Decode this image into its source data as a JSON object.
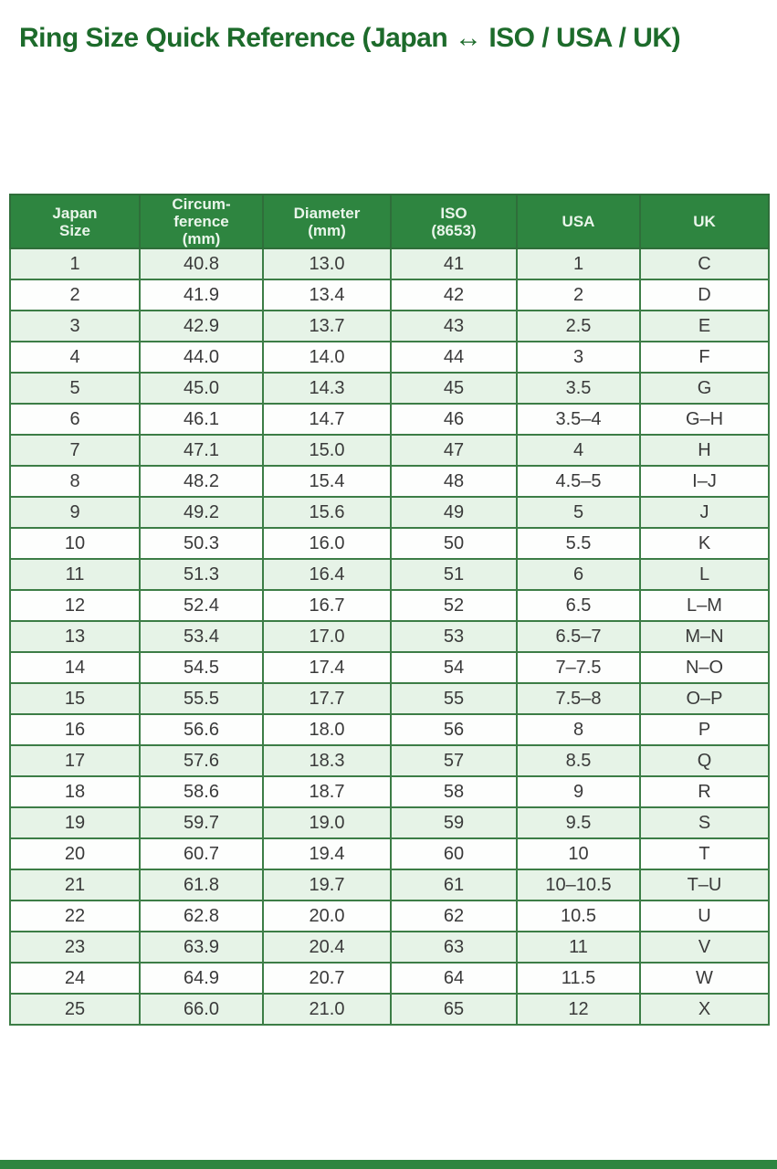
{
  "page": {
    "title": "Ring Size Quick Reference (Japan ↔ ISO / USA / UK)"
  },
  "colors": {
    "title_green": "#1d6b2b",
    "header_bg": "#2e8540",
    "header_text": "#e9f5ea",
    "row_stripe_green": "#e6f3e7",
    "row_stripe_white": "#fdfefd",
    "border_green": "#3c7d46",
    "cell_text": "#3a3a3a",
    "footer_bar": "#2e8540"
  },
  "table": {
    "headers": [
      "Japan\nSize",
      "Circum-\nference\n(mm)",
      "Diameter\n(mm)",
      "ISO\n(8653)",
      "USA",
      "UK"
    ]
  },
  "chart_data": {
    "type": "table",
    "title": "Ring Size Quick Reference (Japan ↔ ISO / USA / UK)",
    "columns": [
      "Japan Size",
      "Circumference (mm)",
      "Diameter (mm)",
      "ISO (8653)",
      "USA",
      "UK"
    ],
    "rows": [
      [
        "1",
        "40.8",
        "13.0",
        "41",
        "1",
        "C"
      ],
      [
        "2",
        "41.9",
        "13.4",
        "42",
        "2",
        "D"
      ],
      [
        "3",
        "42.9",
        "13.7",
        "43",
        "2.5",
        "E"
      ],
      [
        "4",
        "44.0",
        "14.0",
        "44",
        "3",
        "F"
      ],
      [
        "5",
        "45.0",
        "14.3",
        "45",
        "3.5",
        "G"
      ],
      [
        "6",
        "46.1",
        "14.7",
        "46",
        "3.5–4",
        "G–H"
      ],
      [
        "7",
        "47.1",
        "15.0",
        "47",
        "4",
        "H"
      ],
      [
        "8",
        "48.2",
        "15.4",
        "48",
        "4.5–5",
        "I–J"
      ],
      [
        "9",
        "49.2",
        "15.6",
        "49",
        "5",
        "J"
      ],
      [
        "10",
        "50.3",
        "16.0",
        "50",
        "5.5",
        "K"
      ],
      [
        "11",
        "51.3",
        "16.4",
        "51",
        "6",
        "L"
      ],
      [
        "12",
        "52.4",
        "16.7",
        "52",
        "6.5",
        "L–M"
      ],
      [
        "13",
        "53.4",
        "17.0",
        "53",
        "6.5–7",
        "M–N"
      ],
      [
        "14",
        "54.5",
        "17.4",
        "54",
        "7–7.5",
        "N–O"
      ],
      [
        "15",
        "55.5",
        "17.7",
        "55",
        "7.5–8",
        "O–P"
      ],
      [
        "16",
        "56.6",
        "18.0",
        "56",
        "8",
        "P"
      ],
      [
        "17",
        "57.6",
        "18.3",
        "57",
        "8.5",
        "Q"
      ],
      [
        "18",
        "58.6",
        "18.7",
        "58",
        "9",
        "R"
      ],
      [
        "19",
        "59.7",
        "19.0",
        "59",
        "9.5",
        "S"
      ],
      [
        "20",
        "60.7",
        "19.4",
        "60",
        "10",
        "T"
      ],
      [
        "21",
        "61.8",
        "19.7",
        "61",
        "10–10.5",
        "T–U"
      ],
      [
        "22",
        "62.8",
        "20.0",
        "62",
        "10.5",
        "U"
      ],
      [
        "23",
        "63.9",
        "20.4",
        "63",
        "11",
        "V"
      ],
      [
        "24",
        "64.9",
        "20.7",
        "64",
        "11.5",
        "W"
      ],
      [
        "25",
        "66.0",
        "21.0",
        "65",
        "12",
        "X"
      ]
    ]
  }
}
